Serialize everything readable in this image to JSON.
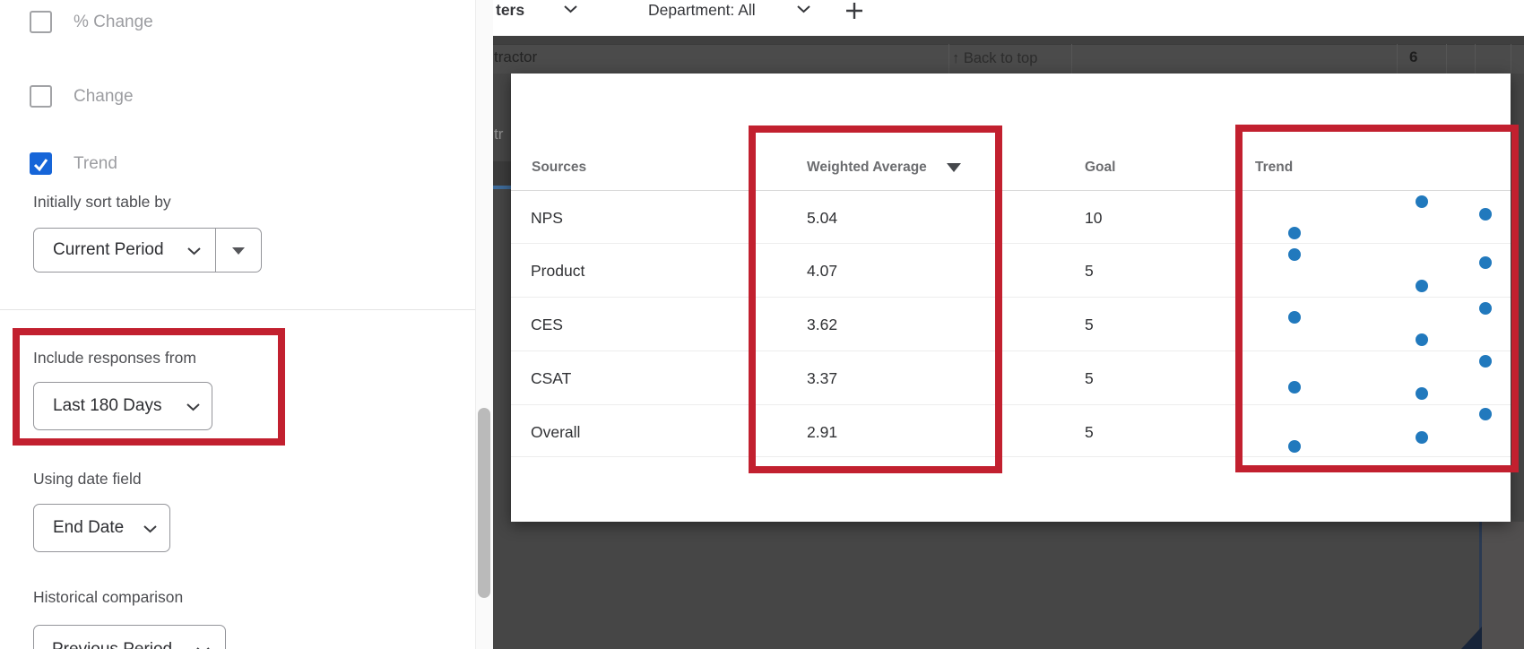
{
  "colors": {
    "annotation_red": "#c2202f",
    "dot_blue": "#2179bd",
    "checkbox_blue": "#1665d8",
    "dim_backdrop": "#464646",
    "dim_chart_navy": "#172439",
    "sliver_blue": "#3f6c9b"
  },
  "toolbar": {
    "filters_partial_label": "ters",
    "department_chip": "Department: All",
    "add_filter": "+"
  },
  "background_app": {
    "header_cell_partial": "tractor",
    "row_cell_partial": "tr",
    "back_to_top_arrow": "↑",
    "back_to_top": "Back to top",
    "count_value": "6"
  },
  "sidebar": {
    "checkboxes": [
      {
        "label": "% Change",
        "checked": false
      },
      {
        "label": "Change",
        "checked": false
      },
      {
        "label": "Trend",
        "checked": true
      }
    ],
    "sort_section_label": "Initially sort table by",
    "sort_value": "Current Period",
    "include_section_label": "Include responses from",
    "include_value": "Last 180 Days",
    "date_field_section_label": "Using date field",
    "date_field_value": "End Date",
    "historical_section_label": "Historical comparison",
    "historical_value": "Previous Period"
  },
  "modal": {
    "table": {
      "headers": {
        "sources": "Sources",
        "weighted_average": "Weighted Average",
        "goal": "Goal",
        "trend": "Trend"
      },
      "sorted_column": "Weighted Average",
      "sort_direction": "desc",
      "rows": [
        {
          "source": "NPS",
          "weighted_average": "5.04",
          "goal": "10"
        },
        {
          "source": "Product",
          "weighted_average": "4.07",
          "goal": "5"
        },
        {
          "source": "CES",
          "weighted_average": "3.62",
          "goal": "5"
        },
        {
          "source": "CSAT",
          "weighted_average": "3.37",
          "goal": "5"
        },
        {
          "source": "Overall",
          "weighted_average": "2.91",
          "goal": "5"
        }
      ],
      "trend_dots": [
        [
          [
            1586,
            225
          ],
          [
            1657,
            239
          ],
          [
            1444,
            260
          ]
        ],
        [
          [
            1444,
            284
          ],
          [
            1657,
            293
          ],
          [
            1586,
            319
          ]
        ],
        [
          [
            1657,
            344
          ],
          [
            1444,
            354
          ],
          [
            1586,
            379
          ]
        ],
        [
          [
            1657,
            403
          ],
          [
            1444,
            432
          ],
          [
            1586,
            439
          ]
        ],
        [
          [
            1657,
            462
          ],
          [
            1586,
            488
          ],
          [
            1444,
            498
          ]
        ]
      ]
    }
  }
}
